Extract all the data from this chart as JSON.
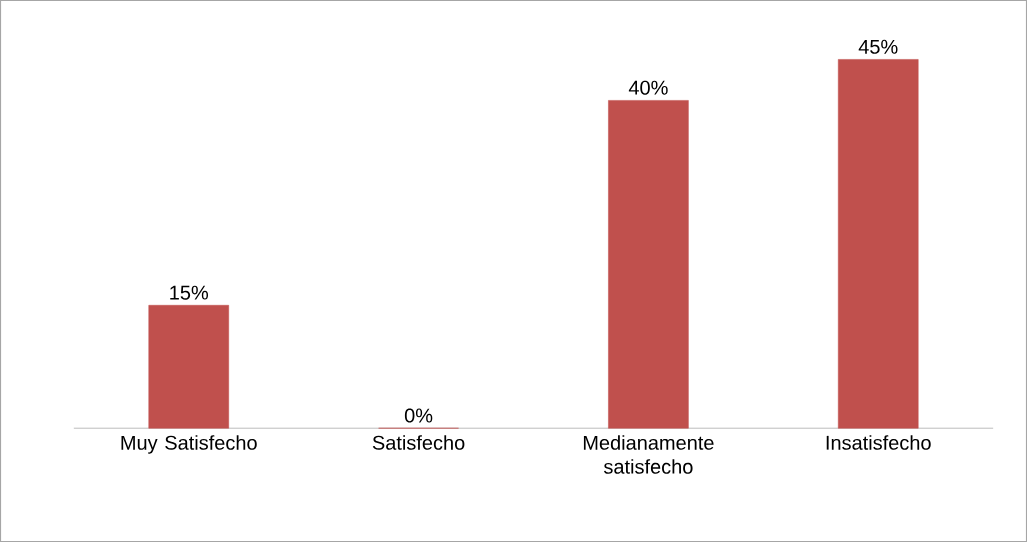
{
  "chart_data": {
    "type": "bar",
    "categories": [
      "Muy Satisfecho",
      "Satisfecho",
      "Medianamente satisfecho",
      "Insatisfecho"
    ],
    "values": [
      15,
      0,
      40,
      45
    ],
    "value_labels": [
      "15%",
      "0%",
      "40%",
      "45%"
    ],
    "color": "#c0504d"
  }
}
